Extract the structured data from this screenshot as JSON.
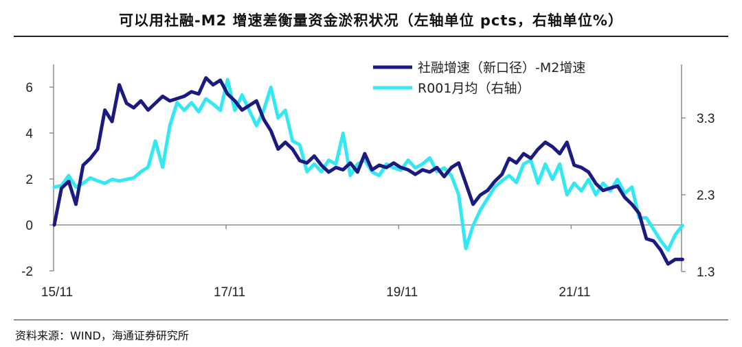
{
  "page": {
    "title": "可以用社融-M2 增速差衡量资金淤积状况（左轴单位 pcts，右轴单位%）",
    "source": "资料来源：WIND，海通证券研究所"
  },
  "colors": {
    "primary": "#1a1a80",
    "secondary": "#33e8f2",
    "axis": "#8c8c8c",
    "text": "#222222"
  },
  "chart_data": {
    "type": "line",
    "title": "可以用社融-M2 增速差衡量资金淤积状况（左轴单位 pcts，右轴单位%）",
    "x_tick_labels": [
      "15/11",
      "17/11",
      "19/11",
      "21/11"
    ],
    "x_tick_index": [
      0,
      24,
      48,
      72
    ],
    "y_left": {
      "ylim": [
        -2,
        7
      ],
      "ticks": [
        6,
        4,
        2,
        0,
        -2
      ],
      "tick_labels": [
        "6",
        "4",
        "2",
        "0",
        "-2"
      ]
    },
    "y_right": {
      "ylim": [
        1.3,
        4.0
      ],
      "ticks": [
        3.3,
        2.3,
        1.3
      ],
      "tick_labels": [
        "3.3",
        "2.3",
        "1.3"
      ]
    },
    "series": [
      {
        "name": "社融增速（新口径）-M2增速",
        "axis": "left",
        "color": "#1a1a80",
        "values": [
          0.0,
          1.6,
          1.9,
          0.9,
          2.6,
          2.9,
          3.3,
          5.0,
          4.5,
          6.1,
          5.3,
          5.1,
          5.4,
          5.0,
          5.3,
          5.6,
          5.4,
          5.5,
          5.6,
          5.8,
          5.7,
          6.4,
          6.1,
          6.3,
          5.7,
          5.4,
          5.0,
          5.2,
          5.4,
          4.6,
          4.1,
          3.3,
          3.6,
          3.3,
          2.8,
          2.7,
          3.0,
          2.6,
          2.3,
          2.5,
          2.4,
          2.7,
          2.3,
          3.1,
          2.4,
          2.6,
          2.5,
          2.7,
          2.5,
          2.4,
          2.2,
          2.4,
          2.3,
          2.5,
          2.1,
          2.5,
          2.7,
          1.8,
          0.9,
          1.3,
          1.5,
          1.9,
          2.2,
          2.9,
          2.7,
          3.1,
          2.9,
          3.3,
          3.6,
          3.4,
          3.1,
          3.6,
          2.6,
          2.5,
          2.3,
          1.8,
          1.5,
          1.6,
          1.7,
          1.2,
          0.9,
          0.5,
          -0.6,
          -0.7,
          -1.1,
          -1.7,
          -1.5,
          -1.5
        ]
      },
      {
        "name": "R001月均（右轴）",
        "axis": "right",
        "color": "#33e8f2",
        "values": [
          2.4,
          2.42,
          2.55,
          2.4,
          2.45,
          2.52,
          2.48,
          2.45,
          2.5,
          2.48,
          2.5,
          2.52,
          2.6,
          2.66,
          3.0,
          2.66,
          3.2,
          3.5,
          3.4,
          3.5,
          3.38,
          3.55,
          3.48,
          3.4,
          3.8,
          3.4,
          3.6,
          3.4,
          3.2,
          3.4,
          3.7,
          3.3,
          3.4,
          3.0,
          2.95,
          2.6,
          2.7,
          2.6,
          2.75,
          2.7,
          3.1,
          2.55,
          2.7,
          2.75,
          2.6,
          2.55,
          2.7,
          2.65,
          2.62,
          2.75,
          2.65,
          2.7,
          2.78,
          2.6,
          2.65,
          2.55,
          2.3,
          1.6,
          1.9,
          2.1,
          2.25,
          2.4,
          2.48,
          2.55,
          2.46,
          2.7,
          2.75,
          2.45,
          2.7,
          2.5,
          2.7,
          2.3,
          2.45,
          2.35,
          2.5,
          2.3,
          2.45,
          2.35,
          2.5,
          2.32,
          2.4,
          2.0,
          2.0,
          1.85,
          1.7,
          1.58,
          1.78,
          1.9
        ]
      }
    ],
    "legend_position": "top-center"
  }
}
